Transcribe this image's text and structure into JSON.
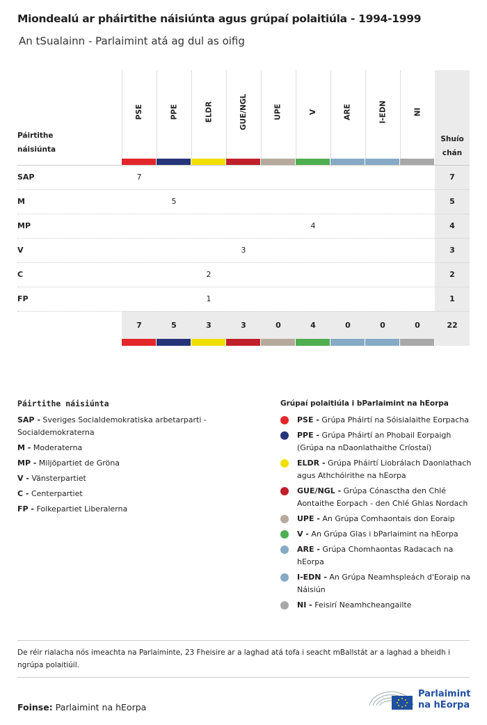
{
  "header": {
    "title": "Miondealú ar pháirtithe náisiúnta agus grúpaí polaitiúla - 1994-1999",
    "subtitle": "An tSualainn - Parlaimint atá ag dul as oifig"
  },
  "table": {
    "row_header": "Páirtithe náisiúnta",
    "seats_header": "Shuíochán",
    "groups": [
      {
        "name": "PSE",
        "color": "#e3262a"
      },
      {
        "name": "PPE",
        "color": "#263479"
      },
      {
        "name": "ELDR",
        "color": "#f0e000"
      },
      {
        "name": "GUE/NGL",
        "color": "#c0202a"
      },
      {
        "name": "UPE",
        "color": "#b5aa9c"
      },
      {
        "name": "V",
        "color": "#4fae4f"
      },
      {
        "name": "ARE",
        "color": "#86a9c4"
      },
      {
        "name": "I-EDN",
        "color": "#86a9c4"
      },
      {
        "name": "NI",
        "color": "#a8a8a8"
      }
    ],
    "rows": [
      {
        "party": "SAP",
        "cells": [
          7,
          null,
          null,
          null,
          null,
          null,
          null,
          null,
          null
        ],
        "total": 7
      },
      {
        "party": "M",
        "cells": [
          null,
          5,
          null,
          null,
          null,
          null,
          null,
          null,
          null
        ],
        "total": 5
      },
      {
        "party": "MP",
        "cells": [
          null,
          null,
          null,
          null,
          null,
          4,
          null,
          null,
          null
        ],
        "total": 4
      },
      {
        "party": "V",
        "cells": [
          null,
          null,
          null,
          3,
          null,
          null,
          null,
          null,
          null
        ],
        "total": 3
      },
      {
        "party": "C",
        "cells": [
          null,
          null,
          2,
          null,
          null,
          null,
          null,
          null,
          null
        ],
        "total": 2
      },
      {
        "party": "FP",
        "cells": [
          null,
          null,
          1,
          null,
          null,
          null,
          null,
          null,
          null
        ],
        "total": 1
      }
    ],
    "totals": [
      7,
      5,
      3,
      3,
      0,
      4,
      0,
      0,
      0
    ],
    "grand_total": 22
  },
  "legend_parties": {
    "title": "Páirtithe náisiúnta",
    "entries": [
      {
        "abbr": "SAP -",
        "name": "Sveriges Socialdemokratiska arbetarparti - Socialdemokraterna"
      },
      {
        "abbr": "M -",
        "name": "Moderaterna"
      },
      {
        "abbr": "MP -",
        "name": "Miljöpartiet de Gröna"
      },
      {
        "abbr": "V -",
        "name": "Vänsterpartiet"
      },
      {
        "abbr": "C -",
        "name": "Centerpartiet"
      },
      {
        "abbr": "FP -",
        "name": "Folkepartiet Liberalerna"
      }
    ]
  },
  "legend_groups": {
    "title": "Grúpaí polaitiúla i bParlaimint na hEorpa",
    "entries": [
      {
        "abbr": "PSE -",
        "name": "Grúpa Pháirtí na Sóisialaithe Eorpacha"
      },
      {
        "abbr": "PPE -",
        "name": "Grúpa Pháirtí an Phobail Eorpaigh (Grúpa na nDaonlathaithe Críostaí)"
      },
      {
        "abbr": "ELDR -",
        "name": "Grúpa Pháirtí Liobrálach Daonlathach agus Athchóirithe na hEorpa"
      },
      {
        "abbr": "GUE/NGL -",
        "name": "Grúpa Cónasctha den Chlé Aontaithe Eorpach - den Chlé Ghlas Nordach"
      },
      {
        "abbr": "UPE -",
        "name": "An Grúpa Comhaontais don Eoraip"
      },
      {
        "abbr": "V -",
        "name": "An Grúpa Glas i bParlaimint na hEorpa"
      },
      {
        "abbr": "ARE -",
        "name": "Grúpa Chomhaontas Radacach na hEorpa"
      },
      {
        "abbr": "I-EDN -",
        "name": "An Grúpa Neamhspleách d'Eoraip na Náisiún"
      },
      {
        "abbr": "NI -",
        "name": "Feisirí Neamhcheangailte"
      }
    ]
  },
  "footnote": "De réir rialacha nós imeachta na Parlaiminte, 23 Fheisire ar a laghad atá tofa i seacht mBallstát ar a laghad a bheidh i ngrúpa polaitiúil.",
  "source": {
    "label": "Foinse:",
    "text": "Parlaimint na hEorpa"
  },
  "logo": {
    "line1": "Parlaimint",
    "line2": "na hEorpa"
  }
}
